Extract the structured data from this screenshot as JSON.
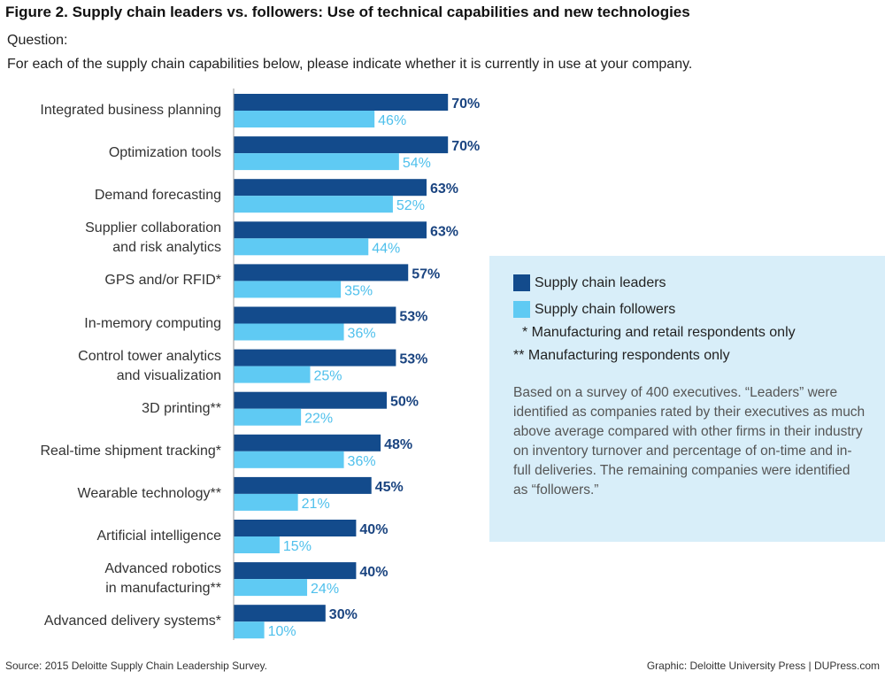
{
  "title": "Figure 2. Supply chain leaders vs. followers: Use of technical capabilities and new technologies",
  "question_label": "Question:",
  "question_text": "For each of the supply chain capabilities below, please indicate whether it is currently in use at your company.",
  "legend": {
    "leaders": "Supply chain leaders",
    "followers": "Supply chain followers",
    "note1": "* Manufacturing and retail respondents only",
    "note2": "** Manufacturing respondents only",
    "survey_note": "Based on a survey of 400 executives. “Leaders” were identified as companies rated by their executives as much above average compared with other firms in their industry on inventory turnover and percentage of on-time and in-full deliveries. The remaining companies were identified as “followers.”"
  },
  "footer": {
    "source": "Source: 2015 Deloitte Supply Chain Leadership Survey.",
    "credit": "Graphic: Deloitte University Press  |  DUPress.com"
  },
  "colors": {
    "leaders": "#134b8c",
    "followers": "#5fcaf3",
    "leaders_text": "#1a4480",
    "followers_text": "#4fc0ec",
    "legend_bg": "#d8eef9",
    "axis": "#999999"
  },
  "chart_data": {
    "type": "bar",
    "orientation": "horizontal",
    "categories": [
      [
        "Integrated business planning"
      ],
      [
        "Optimization tools"
      ],
      [
        "Demand forecasting"
      ],
      [
        "Supplier collaboration",
        "and risk analytics"
      ],
      [
        "GPS and/or RFID*"
      ],
      [
        "In-memory computing"
      ],
      [
        "Control tower analytics",
        "and visualization"
      ],
      [
        "3D printing**"
      ],
      [
        "Real-time shipment tracking*"
      ],
      [
        "Wearable technology**"
      ],
      [
        "Artificial intelligence"
      ],
      [
        "Advanced robotics",
        "in manufacturing**"
      ],
      [
        "Advanced delivery systems*"
      ]
    ],
    "series": [
      {
        "name": "Supply chain leaders",
        "values": [
          70,
          70,
          63,
          63,
          57,
          53,
          53,
          50,
          48,
          45,
          40,
          40,
          30
        ]
      },
      {
        "name": "Supply chain followers",
        "values": [
          46,
          54,
          52,
          44,
          35,
          36,
          25,
          22,
          36,
          21,
          15,
          24,
          10
        ]
      }
    ],
    "value_suffix": "%",
    "xlim": [
      0,
      100
    ]
  }
}
